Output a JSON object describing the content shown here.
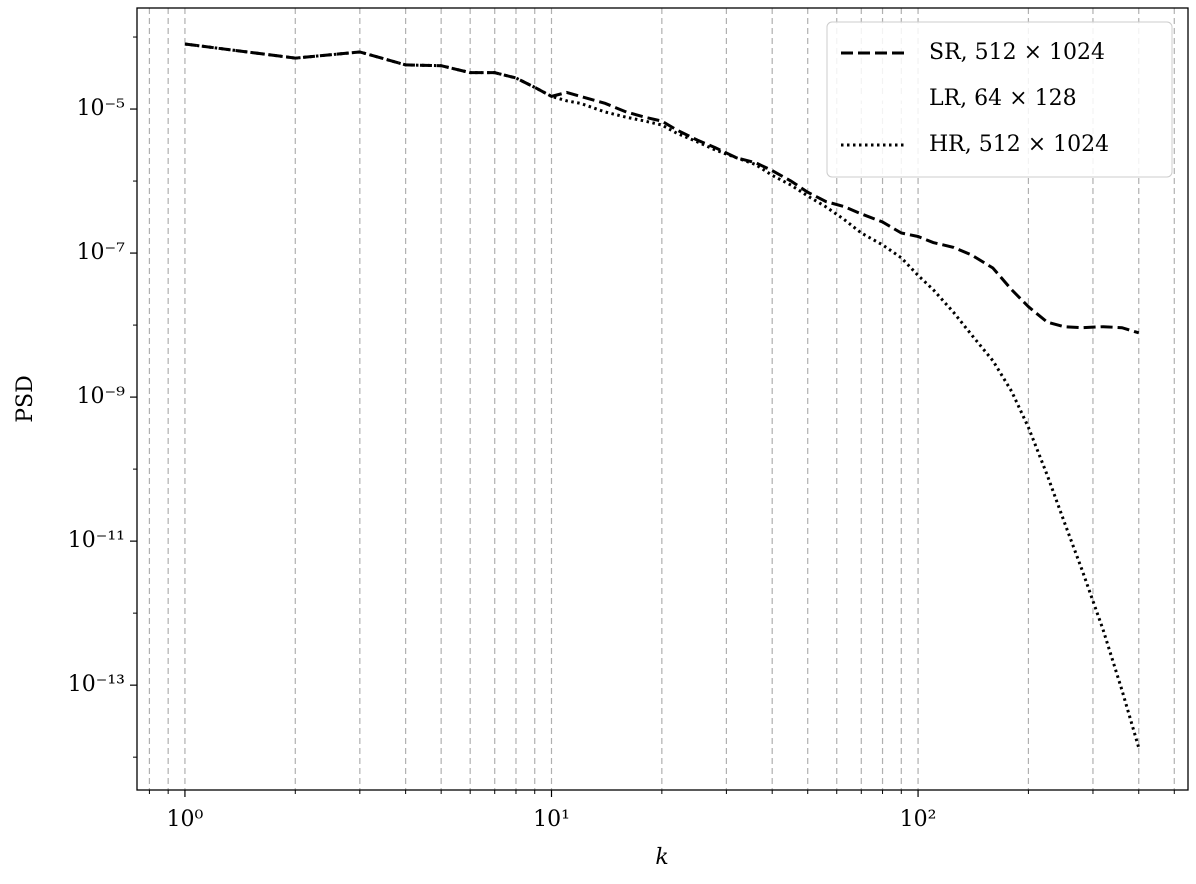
{
  "chart_data": {
    "type": "line",
    "x_label": "k",
    "y_label": "PSD",
    "log_x": true,
    "log_y": true,
    "xlim": [
      0.74,
      545
    ],
    "ylim": [
      3.5e-15,
      0.000253
    ],
    "xticks": [
      {
        "value": 1,
        "label": "10⁰"
      },
      {
        "value": 10,
        "label": "10¹"
      },
      {
        "value": 100,
        "label": "10²"
      }
    ],
    "yticks": [
      {
        "value": 1e-05,
        "label": "10⁻⁵"
      },
      {
        "value": 1e-07,
        "label": "10⁻⁷"
      },
      {
        "value": 1e-09,
        "label": "10⁻⁹"
      },
      {
        "value": 1e-11,
        "label": "10⁻¹¹"
      },
      {
        "value": 1e-13,
        "label": "10⁻¹³"
      }
    ],
    "xminor_ticks": [
      0.8,
      0.9,
      2,
      3,
      4,
      5,
      6,
      7,
      8,
      9,
      20,
      30,
      40,
      50,
      60,
      70,
      80,
      90,
      200,
      300,
      400,
      500
    ],
    "yminor_ticks": [
      0.0001,
      1e-06,
      1e-08,
      1e-10,
      1e-12,
      1e-14
    ],
    "grid": "x",
    "legend": "upper right",
    "x": [
      1,
      2,
      3,
      4,
      5,
      6,
      7,
      8,
      9,
      10,
      11,
      12,
      14,
      16,
      18,
      20,
      22,
      25,
      28,
      32,
      36,
      40,
      45,
      50,
      56,
      63,
      70,
      80,
      90,
      100,
      110,
      125,
      140,
      160,
      180,
      200,
      225,
      250,
      280,
      320,
      360,
      400
    ],
    "series": [
      {
        "name": "LR, 64 × 128",
        "color": "#ffffff",
        "dash": "solid",
        "values": [
          8e-05,
          5.1e-05,
          6.2e-05,
          4.1e-05,
          4e-05,
          3.2e-05,
          3.2e-05,
          2.7e-05,
          2e-05,
          1.5e-05,
          1.7e-05,
          1.5e-05,
          1.2e-05,
          9.1e-06,
          7.7e-06,
          6.8e-06,
          5.1e-06,
          3.7e-06,
          2.9e-06,
          2.1e-06,
          1.8e-06,
          1.4e-06,
          1e-06,
          null,
          null,
          null,
          null,
          null,
          null,
          null,
          null,
          null,
          null,
          null,
          null,
          null,
          null,
          null,
          null,
          null,
          null,
          null
        ]
      },
      {
        "name": "HR, 512 × 1024",
        "color": "#000000",
        "dash": "dotted",
        "values": [
          8e-05,
          5.1e-05,
          6.2e-05,
          4.1e-05,
          4e-05,
          3.2e-05,
          3.2e-05,
          2.7e-05,
          2e-05,
          1.5e-05,
          1.3e-05,
          1.2e-05,
          9.1e-06,
          7.7e-06,
          6.8e-06,
          6e-06,
          4.6e-06,
          3.5e-06,
          2.7e-06,
          2.1e-06,
          1.7e-06,
          1.2e-06,
          8.8e-07,
          6.2e-07,
          4.4e-07,
          2.9e-07,
          1.9e-07,
          1.3e-07,
          8.6e-08,
          4.9e-08,
          3.1e-08,
          1.5e-08,
          7.3e-09,
          3.2e-09,
          1.2e-09,
          3.8e-10,
          8.3e-11,
          1.9e-11,
          4e-12,
          5.8e-13,
          8.5e-14,
          1.35e-14
        ]
      },
      {
        "name": "SR, 512 × 1024",
        "color": "#000000",
        "dash": "dashed",
        "values": [
          8e-05,
          5.1e-05,
          6.2e-05,
          4.1e-05,
          4e-05,
          3.2e-05,
          3.2e-05,
          2.7e-05,
          2e-05,
          1.5e-05,
          1.7e-05,
          1.5e-05,
          1.2e-05,
          9.1e-06,
          7.7e-06,
          6.8e-06,
          5.1e-06,
          3.7e-06,
          2.9e-06,
          2.1e-06,
          1.8e-06,
          1.4e-06,
          1e-06,
          7e-07,
          5.2e-07,
          4.4e-07,
          3.5e-07,
          2.7e-07,
          1.9e-07,
          1.7e-07,
          1.4e-07,
          1.2e-07,
          9.4e-08,
          6.2e-08,
          3.1e-08,
          1.8e-08,
          1.1e-08,
          9.5e-09,
          9.2e-09,
          9.5e-09,
          9.2e-09,
          7.8e-09
        ]
      }
    ],
    "legend_order": [
      2,
      0,
      1
    ]
  }
}
